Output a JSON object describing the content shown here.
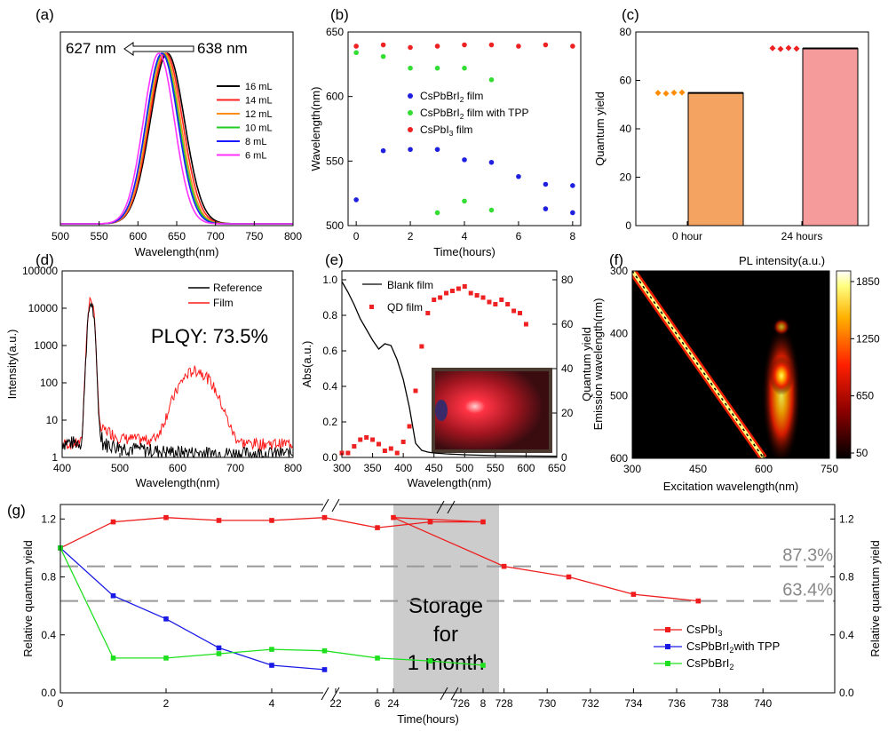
{
  "chart_data": [
    {
      "panel": "(a)",
      "type": "line",
      "xlabel": "Wavelength(nm)",
      "ylabel": "",
      "xlim": [
        500,
        800
      ],
      "xticks": [
        500,
        550,
        600,
        650,
        700,
        750,
        800
      ],
      "annotation_left": "627 nm",
      "annotation_right": "638 nm",
      "series": [
        {
          "name": "16 mL",
          "color": "#000000",
          "peak": 638,
          "sigma": 22
        },
        {
          "name": "14 mL",
          "color": "#ff2020",
          "peak": 636,
          "sigma": 21.5
        },
        {
          "name": "12 mL",
          "color": "#ff8c1a",
          "peak": 634,
          "sigma": 21
        },
        {
          "name": "10 mL",
          "color": "#22cc22",
          "peak": 632,
          "sigma": 21
        },
        {
          "name": "8 mL",
          "color": "#1a1aff",
          "peak": 631,
          "sigma": 20.5
        },
        {
          "name": "6 mL",
          "color": "#ff33ff",
          "peak": 627,
          "sigma": 20
        }
      ]
    },
    {
      "panel": "(b)",
      "type": "scatter",
      "xlabel": "Time(hours)",
      "ylabel": "Wavelength(nm)",
      "xlim": [
        -0.3,
        8.3
      ],
      "ylim": [
        500,
        650
      ],
      "xticks": [
        0,
        2,
        4,
        6,
        8
      ],
      "yticks": [
        500,
        550,
        600,
        650
      ],
      "series": [
        {
          "name": "CsPbBrI2 film",
          "label_main": "CsPbBrI",
          "label_sub": "2",
          "label_rest": " film",
          "color": "#1f1fe0",
          "x": [
            0,
            1,
            2,
            3,
            4,
            5,
            6,
            7,
            8
          ],
          "y": [
            520,
            558,
            559,
            559,
            551,
            549,
            538,
            532,
            531
          ]
        },
        {
          "name": "CsPbBrI2 film with TPP",
          "label_main": "CsPbBrI",
          "label_sub": "2",
          "label_rest": " film with TPP",
          "color": "#33dd33",
          "x": [
            0,
            1,
            2,
            3,
            4,
            5
          ],
          "y": [
            634,
            631,
            622,
            622,
            622,
            613
          ]
        },
        {
          "name": "CsPbI3 film",
          "label_main": "CsPbI",
          "label_sub": "3",
          "label_rest": " film",
          "color": "#ee2222",
          "x": [
            0,
            1,
            2,
            3,
            4,
            5,
            6,
            7,
            8
          ],
          "y": [
            639,
            640,
            638,
            639,
            640,
            640,
            639,
            640,
            639
          ]
        }
      ],
      "extra_points": [
        {
          "color": "#1f1fe0",
          "x": [
            7,
            8
          ],
          "y": [
            513,
            510
          ]
        },
        {
          "color": "#33dd33",
          "x": [
            3,
            4,
            5
          ],
          "y": [
            510,
            519,
            512
          ]
        }
      ]
    },
    {
      "panel": "(c)",
      "type": "bar",
      "ylabel": "Quantum yield",
      "ylim": [
        0,
        80
      ],
      "yticks": [
        0,
        20,
        40,
        60,
        80
      ],
      "categories": [
        "0 hour",
        "24 hours"
      ],
      "values": [
        54.8,
        73.2
      ],
      "bar_colors": [
        "#f4a460",
        "#f59b9b"
      ],
      "scatter": [
        {
          "color": "#ff8c00",
          "values": [
            54.8,
            54.6,
            54.9,
            55.0
          ]
        },
        {
          "color": "#ee2020",
          "values": [
            73.3,
            73.0,
            73.4,
            73.1
          ]
        }
      ]
    },
    {
      "panel": "(d)",
      "type": "line",
      "xlabel": "Wavelength(nm)",
      "ylabel": "Intensity(a.u.)",
      "xlim": [
        400,
        800
      ],
      "xticks": [
        400,
        500,
        600,
        700,
        800
      ],
      "ylim_log": [
        1,
        100000
      ],
      "yticks": [
        "1",
        "10",
        "100",
        "1000",
        "10000",
        "100000"
      ],
      "annotation": "PLQY: 73.5%",
      "series": [
        {
          "name": "Reference",
          "color": "#000000"
        },
        {
          "name": "Film",
          "color": "#ff1a1a"
        }
      ]
    },
    {
      "panel": "(e)",
      "type": "line+scatter",
      "xlabel": "Wavelength(nm)",
      "ylabel": "Abs(a.u.)",
      "y2label": "Quantum yield",
      "xlim": [
        300,
        650
      ],
      "xticks": [
        300,
        350,
        400,
        450,
        500,
        550,
        600,
        650
      ],
      "ylim": [
        0,
        1.05
      ],
      "yticks": [
        0.0,
        0.2,
        0.4,
        0.6,
        0.8,
        1.0
      ],
      "y2lim": [
        0,
        84
      ],
      "y2ticks": [
        0,
        20,
        40,
        60,
        80
      ],
      "series": [
        {
          "name": "Blank film",
          "color": "#000000",
          "x": [
            300,
            310,
            320,
            330,
            340,
            350,
            360,
            370,
            380,
            390,
            400,
            410,
            420,
            430,
            440,
            450,
            470,
            500,
            550,
            600,
            650
          ],
          "y": [
            0.99,
            0.93,
            0.86,
            0.78,
            0.72,
            0.66,
            0.61,
            0.64,
            0.63,
            0.55,
            0.44,
            0.28,
            0.08,
            0.04,
            0.03,
            0.025,
            0.02,
            0.015,
            0.01,
            0.008,
            0.007
          ]
        },
        {
          "name": "QD film",
          "color": "#ee2222",
          "x": [
            300,
            310,
            320,
            330,
            340,
            350,
            360,
            370,
            380,
            390,
            400,
            410,
            420,
            430,
            440,
            450,
            460,
            470,
            480,
            490,
            500,
            510,
            520,
            530,
            540,
            550,
            560,
            570,
            580,
            590,
            600
          ],
          "y": [
            2,
            2,
            5,
            8,
            9,
            8,
            6,
            3,
            4,
            2,
            7,
            14,
            30,
            50,
            65,
            71,
            72,
            74,
            75,
            76,
            77,
            74,
            73,
            72,
            70,
            69,
            71,
            69,
            66,
            65,
            60
          ]
        }
      ]
    },
    {
      "panel": "(f)",
      "type": "heatmap",
      "xlabel": "Excitation wavelength(nm)",
      "ylabel": "Emission wavelength(nm)",
      "colorbar_label": "PL intensity(a.u.)",
      "xlim": [
        300,
        750
      ],
      "ylim": [
        300,
        600
      ],
      "xticks": [
        300,
        450,
        600,
        750
      ],
      "yticks": [
        300,
        400,
        500,
        600
      ],
      "colorbar_ticks": [
        50,
        650,
        1250,
        1850
      ]
    },
    {
      "panel": "(g)",
      "type": "line",
      "xlabel": "Time(hours)",
      "ylabel": "Relative quantum yield",
      "y2label": "Relative quantum yield",
      "ylim": [
        0,
        1.3
      ],
      "yticks": [
        0.0,
        0.4,
        0.8,
        1.2
      ],
      "xticks_left": [
        0,
        2,
        4,
        6,
        8
      ],
      "xtick_mid": [
        22,
        24
      ],
      "xticks_right": [
        726,
        728,
        730,
        732,
        734,
        736,
        738,
        740
      ],
      "storage_line1": "Storage",
      "storage_line2": "for",
      "storage_line3": "1 month",
      "ref_lines": [
        {
          "value": 0.873,
          "label": "87.3%"
        },
        {
          "value": 0.634,
          "label": "63.4%"
        }
      ],
      "series": [
        {
          "name": "CsPbI3",
          "label_main": "CsPbI",
          "label_sub": "3",
          "label_rest": "",
          "color": "#ee1c1c",
          "x": [
            0,
            1,
            2,
            3,
            4,
            5,
            6,
            7,
            8,
            24,
            728,
            731,
            734,
            737
          ],
          "y": [
            1.0,
            1.18,
            1.21,
            1.19,
            1.19,
            1.21,
            1.14,
            1.18,
            1.18,
            1.21,
            0.873,
            0.8,
            0.68,
            0.634
          ]
        },
        {
          "name": "CsPbBrI2with TPP",
          "label_main": "CsPbBrI",
          "label_sub": "2",
          "label_rest": "with TPP",
          "color": "#1a1ae6",
          "x": [
            0,
            1,
            2,
            3,
            4,
            5
          ],
          "y": [
            1.0,
            0.67,
            0.51,
            0.31,
            0.19,
            0.16
          ]
        },
        {
          "name": "CsPbBrI2",
          "label_main": "CsPbBrI",
          "label_sub": "2",
          "label_rest": "",
          "color": "#1ee01e",
          "x": [
            0,
            1,
            2,
            3,
            4,
            5,
            6,
            7,
            8
          ],
          "y": [
            1.0,
            0.24,
            0.24,
            0.27,
            0.3,
            0.29,
            0.24,
            0.22,
            0.19
          ]
        }
      ]
    }
  ]
}
